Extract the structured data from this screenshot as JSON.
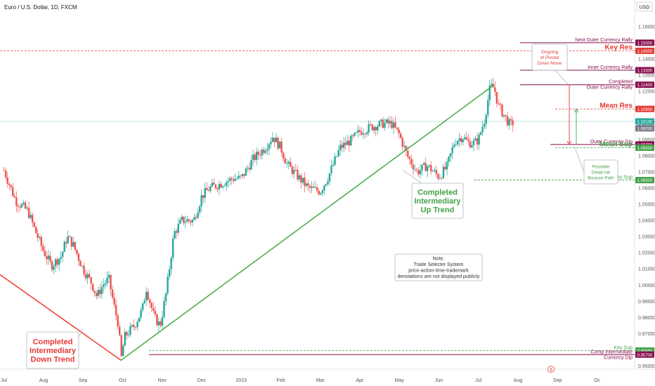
{
  "chart_data": {
    "type": "candlestick",
    "title": "Euro / U.S. Dollar, 1D, FXCM",
    "currency": "USD",
    "ylim": [
      0.948,
      1.166
    ],
    "y_ticks": [
      1.16,
      1.15,
      1.14,
      1.13,
      1.12,
      1.11,
      1.1,
      1.09,
      1.08,
      1.07,
      1.06,
      1.05,
      1.04,
      1.03,
      1.02,
      1.01,
      1.0,
      0.99,
      0.98,
      0.97,
      0.96,
      0.95
    ],
    "y_tick_labels": [
      "1.16000",
      "1.15000",
      "1.14000",
      "1.13000",
      "1.12000",
      "1.11000",
      "1.10000",
      "1.09000",
      "1.08000",
      "1.07000",
      "1.06000",
      "1.05000",
      "1.04000",
      "1.03000",
      "1.02000",
      "1.01000",
      "1.00000",
      "0.99000",
      "0.98000",
      "0.97000",
      "0.96000",
      "0.95000"
    ],
    "x_labels": [
      "Jul",
      "Aug",
      "Sep",
      "Oct",
      "Nov",
      "Dec",
      "2023",
      "Feb",
      "Mar",
      "Apr",
      "May",
      "Jun",
      "Jul",
      "Aug",
      "Sep",
      "Oc"
    ],
    "x_range_months": [
      -0.1,
      15.95
    ],
    "price_path": [
      [
        0.0,
        1.071
      ],
      [
        0.3,
        1.052
      ],
      [
        0.6,
        1.046
      ],
      [
        0.8,
        1.033
      ],
      [
        1.0,
        1.021
      ],
      [
        1.2,
        1.012
      ],
      [
        1.45,
        1.018
      ],
      [
        1.6,
        1.03
      ],
      [
        1.75,
        1.025
      ],
      [
        2.0,
        1.01
      ],
      [
        2.2,
        1.002
      ],
      [
        2.35,
        0.993
      ],
      [
        2.5,
        1.0
      ],
      [
        2.65,
        1.004
      ],
      [
        2.8,
        0.985
      ],
      [
        2.9,
        0.975
      ],
      [
        2.96,
        0.9535
      ],
      [
        3.05,
        0.968
      ],
      [
        3.3,
        0.975
      ],
      [
        3.5,
        0.985
      ],
      [
        3.6,
        0.998
      ],
      [
        3.8,
        0.98
      ],
      [
        3.95,
        0.975
      ],
      [
        4.1,
        0.995
      ],
      [
        4.3,
        1.032
      ],
      [
        4.5,
        1.04
      ],
      [
        4.8,
        1.04
      ],
      [
        5.0,
        1.055
      ],
      [
        5.2,
        1.06
      ],
      [
        5.5,
        1.063
      ],
      [
        5.8,
        1.066
      ],
      [
        6.0,
        1.066
      ],
      [
        6.3,
        1.078
      ],
      [
        6.6,
        1.085
      ],
      [
        6.8,
        1.092
      ],
      [
        7.0,
        1.085
      ],
      [
        7.15,
        1.075
      ],
      [
        7.4,
        1.068
      ],
      [
        7.7,
        1.06
      ],
      [
        8.0,
        1.058
      ],
      [
        8.2,
        1.067
      ],
      [
        8.5,
        1.085
      ],
      [
        8.8,
        1.09
      ],
      [
        9.0,
        1.095
      ],
      [
        9.3,
        1.098
      ],
      [
        9.6,
        1.1
      ],
      [
        9.8,
        1.1
      ],
      [
        10.0,
        1.093
      ],
      [
        10.2,
        1.08
      ],
      [
        10.45,
        1.07
      ],
      [
        10.7,
        1.074
      ],
      [
        11.0,
        1.067
      ],
      [
        11.2,
        1.073
      ],
      [
        11.4,
        1.089
      ],
      [
        11.6,
        1.092
      ],
      [
        11.75,
        1.088
      ],
      [
        11.9,
        1.088
      ],
      [
        12.0,
        1.09
      ],
      [
        12.15,
        1.102
      ],
      [
        12.3,
        1.123
      ],
      [
        12.4,
        1.122
      ],
      [
        12.5,
        1.111
      ],
      [
        12.65,
        1.105
      ],
      [
        12.8,
        1.099
      ],
      [
        12.9,
        1.101
      ]
    ],
    "levels": [
      {
        "label": "Next Outer Currency Rally",
        "value": 1.15,
        "value_label": "1.15000",
        "color": "#880e4f",
        "style": "solid"
      },
      {
        "label": "Key Res",
        "value": 1.145,
        "value_label": "1.14500",
        "color": "#e53935",
        "style": "dashed"
      },
      {
        "label": "Inner Currency Rally",
        "value": 1.133,
        "value_label": "1.13300",
        "color": "#880e4f",
        "style": "solid"
      },
      {
        "label": "Completed\nOuter Currency Rally",
        "value": 1.124,
        "value_label": "1.12400",
        "color": "#880e4f",
        "style": "solid"
      },
      {
        "label": "Mean Res",
        "value": 1.109,
        "value_label": "1.10900",
        "color": "#e53935",
        "style": "dashed"
      },
      {
        "label": "",
        "value": 1.1013,
        "value_label": "1.10130",
        "color": "#26a69a",
        "style": "dotted"
      },
      {
        "label": "",
        "value": 1.097,
        "value_label": "1.09700",
        "color": "#787b86",
        "style": "none"
      },
      {
        "label": "Outer Currency Dip",
        "value": 1.087,
        "value_label": "1.08700",
        "color": "#880e4f",
        "style": "solid"
      },
      {
        "label": "Mean Sup",
        "value": 1.085,
        "value_label": "1.08500",
        "color": "#43a047",
        "style": "dashed"
      },
      {
        "label": "Key Sup",
        "value": 1.065,
        "value_label": "1.06500",
        "color": "#43a047",
        "style": "dashed"
      },
      {
        "label": "Key Sup",
        "value": 0.9595,
        "value_label": "0.95950",
        "color": "#43a047",
        "style": "dashed"
      },
      {
        "label": "Comp Intermediate\nCurrency Dip",
        "value": 0.957,
        "value_label": "0.95700",
        "color": "#880e4f",
        "style": "solid"
      }
    ],
    "annotations": [
      {
        "text": "Completed\nIntermediary\nDown Trend",
        "color": "#e53935"
      },
      {
        "text": "Completed\nIntermediary\nUp Trend",
        "color": "#43a047"
      },
      {
        "text": "Ongoing\nof Pivotal\nDown Move",
        "color": "#e53935"
      },
      {
        "text": "Possible\nDead-cat\nBounce Path",
        "color": "#43a047"
      },
      {
        "text": "Note:\nTrade Selecter System\nprice-action-time-trademark\ndenotations are not displayed publicly",
        "color": "#333333"
      }
    ],
    "trend_lines": [
      {
        "name": "down-trend",
        "from": [
          -0.1,
          1.0065
        ],
        "to": [
          2.96,
          0.9535
        ],
        "color": "#f44336"
      },
      {
        "name": "up-trend",
        "from": [
          2.96,
          0.9535
        ],
        "to": [
          12.4,
          1.124
        ],
        "color": "#4caf50"
      }
    ],
    "event_marker": "$",
    "colors": {
      "up": "#26a69a",
      "down": "#ef5350"
    }
  }
}
